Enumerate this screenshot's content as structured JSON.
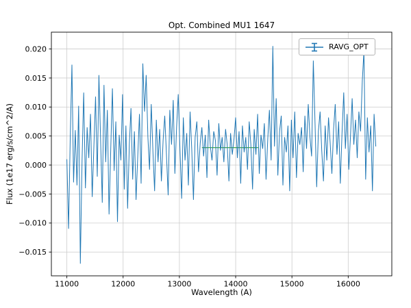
{
  "figure": {
    "title": "Opt. Combined MU1 1647",
    "xlabel": "Wavelength (A)",
    "ylabel": "Flux (1e17 erg/s/cm^2/A)",
    "legend_label": "RAVG_OPT"
  },
  "chart_data": {
    "type": "line",
    "title": "Opt. Combined MU1 1647",
    "xlabel": "Wavelength (A)",
    "ylabel": "Flux (1e17 erg/s/cm^2/A)",
    "legend": [
      "RAVG_OPT"
    ],
    "legend_position": "upper right",
    "grid": true,
    "line_color": "#1f77b4",
    "grid_color": "#cccccc",
    "axis_color": "#000000",
    "xlim": [
      10725,
      16775
    ],
    "ylim": [
      -0.0191,
      0.0229
    ],
    "xticks": [
      11000,
      12000,
      13000,
      14000,
      15000,
      16000
    ],
    "xtick_labels": [
      "11000",
      "12000",
      "13000",
      "14000",
      "15000",
      "16000"
    ],
    "yticks": [
      -0.015,
      -0.01,
      -0.005,
      0.0,
      0.005,
      0.01,
      0.015,
      0.02
    ],
    "ytick_labels": [
      "−0.015",
      "−0.010",
      "−0.005",
      "0.000",
      "0.005",
      "0.010",
      "0.015",
      "0.020"
    ],
    "x_start": 11000,
    "x_step": 30,
    "values": [
      0.001,
      -0.011,
      0.0045,
      0.0173,
      -0.003,
      0.006,
      -0.0035,
      0.0102,
      -0.017,
      0.0008,
      0.0125,
      -0.004,
      0.0065,
      0.0012,
      0.0088,
      -0.0055,
      0.003,
      0.0118,
      -0.002,
      0.0155,
      0.0042,
      -0.0065,
      0.0138,
      0.0005,
      0.0095,
      -0.0085,
      0.0028,
      0.0132,
      -0.001,
      0.0075,
      -0.0098,
      0.0052,
      0.0008,
      0.0122,
      -0.0042,
      0.0068,
      -0.0075,
      0.0035,
      0.0098,
      -0.0025,
      0.0058,
      -0.006,
      0.0015,
      0.0088,
      -0.0032,
      0.0175,
      0.0092,
      0.0155,
      0.0048,
      -0.0008,
      0.0105,
      0.0022,
      -0.0045,
      0.0078,
      0.0005,
      0.0062,
      -0.0028,
      0.0042,
      0.0085,
      0.0018,
      -0.0052,
      0.0095,
      0.0035,
      0.0112,
      -0.0015,
      0.0065,
      0.0122,
      0.0028,
      -0.0058,
      0.0082,
      0.0008,
      0.0055,
      -0.0035,
      0.0092,
      0.0025,
      -0.006,
      0.0048,
      0.0075,
      -0.0012,
      0.0038,
      0.0065,
      0.0015,
      0.0052,
      -0.0022,
      0.0078,
      0.0032,
      0.0008,
      0.0058,
      0.0042,
      -0.0018,
      0.0072,
      0.0025,
      0.0048,
      0.0005,
      0.0062,
      0.0035,
      -0.0028,
      0.0055,
      0.0018,
      0.0045,
      0.0082,
      0.0012,
      0.0058,
      -0.0032,
      0.0068,
      0.0022,
      0.0048,
      -0.0008,
      0.0075,
      0.0035,
      -0.0042,
      0.0062,
      0.0018,
      0.0088,
      -0.0015,
      0.0052,
      0.0028,
      0.0072,
      -0.0025,
      0.0045,
      0.0095,
      0.0008,
      0.0205,
      0.0032,
      0.0115,
      -0.0018,
      0.0058,
      0.0085,
      -0.0035,
      0.0048,
      0.0022,
      0.0068,
      -0.0045,
      0.0078,
      0.0012,
      0.0092,
      -0.0022,
      0.0055,
      0.0035,
      0.0065,
      -0.0012,
      0.0085,
      0.0028,
      0.0105,
      0.0048,
      0.0015,
      0.018,
      0.0072,
      -0.0038,
      0.0058,
      0.0092,
      0.0025,
      -0.0028,
      0.0068,
      0.0008,
      0.0082,
      0.0038,
      -0.0015,
      0.0062,
      0.0105,
      0.0018,
      0.0075,
      -0.0032,
      0.0055,
      0.0125,
      0.0028,
      0.0088,
      -0.0008,
      0.0048,
      0.0115,
      0.0035,
      0.0078,
      0.0012,
      0.0092,
      0.0058,
      0.0145,
      0.0197,
      -0.0025,
      0.0082,
      0.0022,
      0.0068,
      -0.0045,
      0.0088,
      0.0032
    ],
    "overlay": {
      "color": "#2ca02c",
      "x": [
        13400,
        14400
      ],
      "y": 0.003
    }
  }
}
